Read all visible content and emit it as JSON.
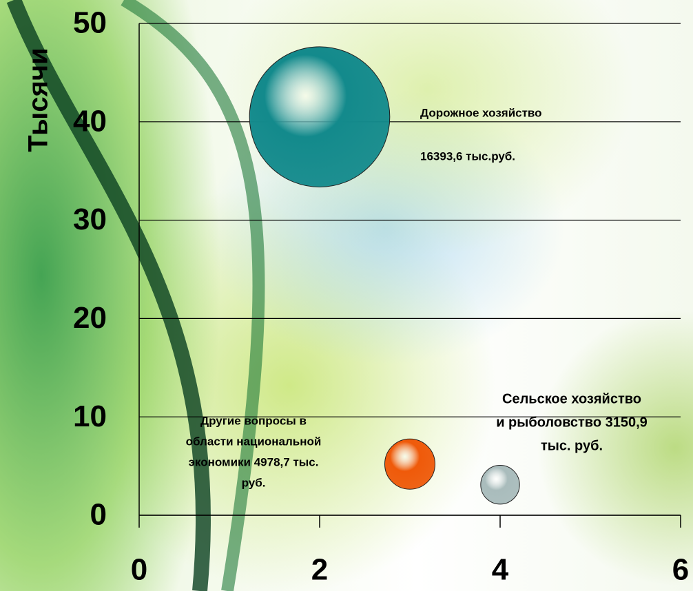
{
  "chart_data": {
    "type": "bubble",
    "y_label": "Тысячи",
    "x": [
      2,
      3,
      4
    ],
    "series": [
      {
        "name": null,
        "colors": [
          "#138a8c",
          "#ef5a0a",
          "#a9bcbc"
        ],
        "values": [
          40.5,
          5.2,
          3.1
        ]
      }
    ],
    "annotations": [
      [
        "Дорожное хозяйство",
        "16393,6 тыс.руб."
      ],
      [
        "Другие вопросы в",
        "области национальной",
        "экономики 4978,7 тыс.",
        "руб."
      ],
      [
        "Сельское хозяйство",
        "и рыболовство 3150,9",
        "тыс. руб."
      ]
    ],
    "xlim": [
      0,
      6
    ],
    "xticks": [
      0,
      2,
      4,
      6
    ],
    "ylim": [
      0,
      50
    ],
    "yticks": [
      0,
      10,
      20,
      30,
      40,
      50
    ],
    "grid": true
  }
}
